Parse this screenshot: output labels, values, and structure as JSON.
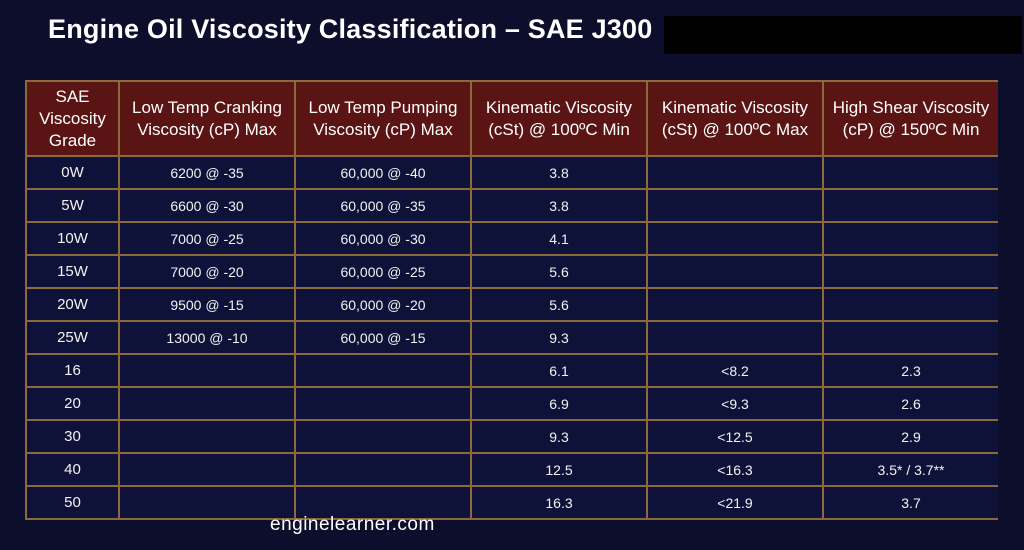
{
  "title": "Engine Oil Viscosity Classification – SAE J300",
  "table": {
    "headers": [
      "SAE Viscosity Grade",
      "Low Temp Cranking Viscosity (cP) Max",
      "Low Temp Pumping Viscosity (cP) Max",
      "Kinematic Viscosity (cSt) @ 100ºC Min",
      "Kinematic Viscosity (cSt) @ 100ºC Max",
      "High Shear Viscosity (cP) @ 150ºC Min"
    ],
    "rows": [
      [
        "0W",
        "6200 @ -35",
        "60,000 @ -40",
        "3.8",
        "",
        ""
      ],
      [
        "5W",
        "6600 @ -30",
        "60,000 @ -35",
        "3.8",
        "",
        ""
      ],
      [
        "10W",
        "7000 @ -25",
        "60,000 @ -30",
        "4.1",
        "",
        ""
      ],
      [
        "15W",
        "7000 @ -20",
        "60,000 @ -25",
        "5.6",
        "",
        ""
      ],
      [
        "20W",
        "9500 @ -15",
        "60,000 @ -20",
        "5.6",
        "",
        ""
      ],
      [
        "25W",
        "13000 @ -10",
        "60,000 @ -15",
        "9.3",
        "",
        ""
      ],
      [
        "16",
        "",
        "",
        "6.1",
        "<8.2",
        "2.3"
      ],
      [
        "20",
        "",
        "",
        "6.9",
        "<9.3",
        "2.6"
      ],
      [
        "30",
        "",
        "",
        "9.3",
        "<12.5",
        "2.9"
      ],
      [
        "40",
        "",
        "",
        "12.5",
        "<16.3",
        "3.5* / 3.7**"
      ],
      [
        "50",
        "",
        "",
        "16.3",
        "<21.9",
        "3.7"
      ]
    ]
  },
  "watermark": "enginelearner.com",
  "colors": {
    "background": "#0d0e2c",
    "header_fill": "#5b1414",
    "cell_fill": "#0f1238",
    "border": "#8a6a3a",
    "text": "#ffffff"
  }
}
